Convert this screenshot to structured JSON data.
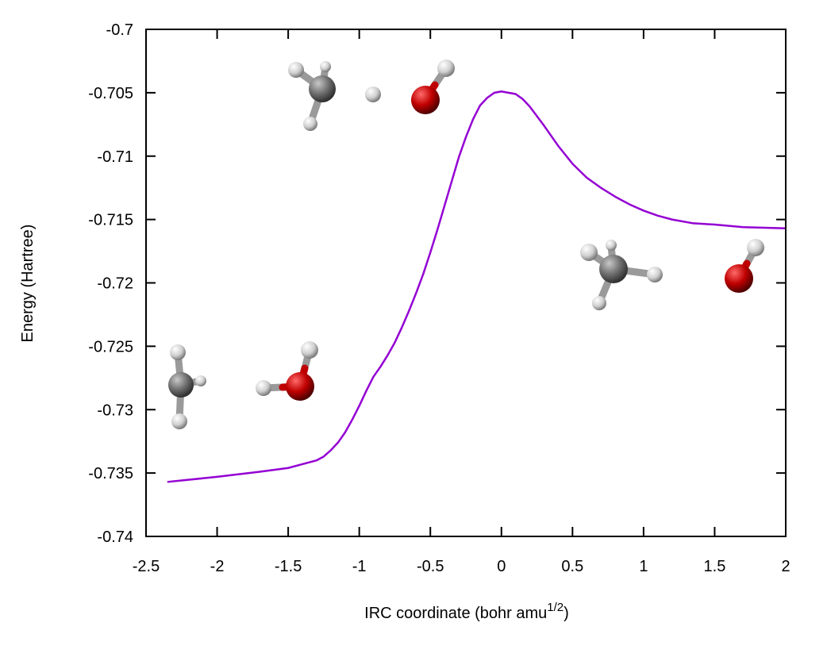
{
  "chart_data": {
    "type": "line",
    "title": "",
    "xlabel": "IRC coordinate (bohr amu",
    "xlabel_superscript": "1/2",
    "xlabel_suffix": ")",
    "ylabel": "Energy (Hartree)",
    "xlim": [
      -2.5,
      2
    ],
    "ylim": [
      -0.74,
      -0.7
    ],
    "x_ticks": [
      -2.5,
      -2,
      -1.5,
      -1,
      -0.5,
      0,
      0.5,
      1,
      1.5,
      2
    ],
    "x_tick_labels": [
      "-2.5",
      "-2",
      "-1.5",
      "-1",
      "-0.5",
      "0",
      "0.5",
      "1",
      "1.5",
      "2"
    ],
    "y_ticks": [
      -0.74,
      -0.735,
      -0.73,
      -0.725,
      -0.72,
      -0.715,
      -0.71,
      -0.705,
      -0.7
    ],
    "y_tick_labels": [
      "-0.74",
      "-0.735",
      "-0.73",
      "-0.725",
      "-0.72",
      "-0.715",
      "-0.71",
      "-0.705",
      "-0.7"
    ],
    "grid": false,
    "legend": "none",
    "series": [
      {
        "color": "#9400d3",
        "x": [
          -2.35,
          -2.0,
          -1.7,
          -1.5,
          -1.4,
          -1.3,
          -1.25,
          -1.2,
          -1.15,
          -1.1,
          -1.05,
          -1.0,
          -0.95,
          -0.9,
          -0.85,
          -0.8,
          -0.75,
          -0.7,
          -0.65,
          -0.6,
          -0.55,
          -0.5,
          -0.45,
          -0.4,
          -0.35,
          -0.3,
          -0.25,
          -0.2,
          -0.15,
          -0.1,
          -0.05,
          0.0,
          0.05,
          0.1,
          0.15,
          0.2,
          0.3,
          0.4,
          0.5,
          0.6,
          0.7,
          0.8,
          0.9,
          1.0,
          1.1,
          1.2,
          1.35,
          1.5,
          1.7,
          2.0
        ],
        "y": [
          -0.7357,
          -0.7353,
          -0.7349,
          -0.7346,
          -0.7343,
          -0.734,
          -0.7337,
          -0.7332,
          -0.7326,
          -0.7318,
          -0.7308,
          -0.7297,
          -0.7285,
          -0.7274,
          -0.7266,
          -0.7257,
          -0.7247,
          -0.7235,
          -0.7222,
          -0.7208,
          -0.7193,
          -0.7176,
          -0.7158,
          -0.7139,
          -0.712,
          -0.7101,
          -0.7085,
          -0.7071,
          -0.706,
          -0.7054,
          -0.705,
          -0.7049,
          -0.705,
          -0.7051,
          -0.7055,
          -0.7061,
          -0.7076,
          -0.7092,
          -0.7106,
          -0.7117,
          -0.7125,
          -0.7132,
          -0.7138,
          -0.7143,
          -0.7147,
          -0.715,
          -0.7153,
          -0.7154,
          -0.7156,
          -0.7157
        ]
      }
    ]
  },
  "molecules": {
    "atom_colors": {
      "carbon": "#707070",
      "hydrogen": "#d8d8d8",
      "oxygen": "#c00000"
    }
  }
}
